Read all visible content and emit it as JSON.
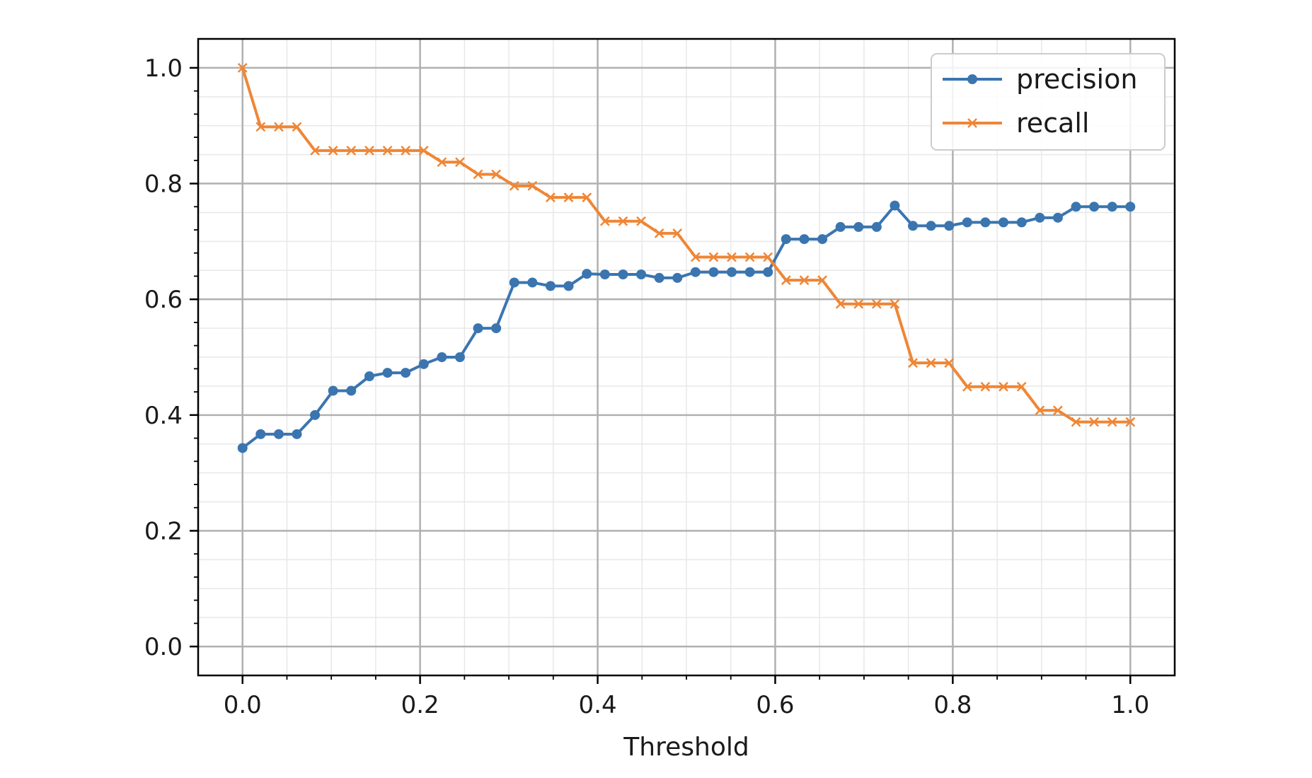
{
  "chart_data": {
    "type": "line",
    "title": "",
    "xlabel": "Threshold",
    "ylabel": "",
    "xlim": [
      -0.05,
      1.05
    ],
    "ylim": [
      -0.05,
      1.05
    ],
    "xticks": [
      0.0,
      0.2,
      0.4,
      0.6,
      0.8,
      1.0
    ],
    "yticks": [
      0.0,
      0.2,
      0.4,
      0.6,
      0.8,
      1.0
    ],
    "xtick_labels": [
      "0.0",
      "0.2",
      "0.4",
      "0.6",
      "0.8",
      "1.0"
    ],
    "ytick_labels": [
      "0.0",
      "0.2",
      "0.4",
      "0.6",
      "0.8",
      "1.0"
    ],
    "grid": {
      "major": true,
      "minor": true
    },
    "legend_position": "top-right",
    "x": [
      0.0,
      0.0204,
      0.0408,
      0.0612,
      0.0816,
      0.102,
      0.1224,
      0.1429,
      0.1633,
      0.1837,
      0.2041,
      0.2245,
      0.2449,
      0.2653,
      0.2857,
      0.3061,
      0.3265,
      0.3469,
      0.3673,
      0.3878,
      0.4082,
      0.4286,
      0.449,
      0.4694,
      0.4898,
      0.5102,
      0.5306,
      0.551,
      0.5714,
      0.5918,
      0.6122,
      0.6327,
      0.6531,
      0.6735,
      0.6939,
      0.7143,
      0.7347,
      0.7551,
      0.7755,
      0.7959,
      0.8163,
      0.8367,
      0.8571,
      0.8776,
      0.898,
      0.9184,
      0.9388,
      0.9592,
      0.9796,
      1.0
    ],
    "series": [
      {
        "name": "precision",
        "color": "#3a75b0",
        "marker": "dot",
        "values": [
          0.343,
          0.367,
          0.367,
          0.367,
          0.4,
          0.442,
          0.442,
          0.467,
          0.473,
          0.473,
          0.488,
          0.5,
          0.5,
          0.55,
          0.55,
          0.629,
          0.629,
          0.623,
          0.623,
          0.644,
          0.643,
          0.643,
          0.643,
          0.637,
          0.637,
          0.647,
          0.647,
          0.647,
          0.647,
          0.647,
          0.704,
          0.704,
          0.704,
          0.725,
          0.725,
          0.725,
          0.762,
          0.727,
          0.727,
          0.727,
          0.733,
          0.733,
          0.733,
          0.733,
          0.741,
          0.741,
          0.76,
          0.76,
          0.76,
          0.76
        ]
      },
      {
        "name": "recall",
        "color": "#ef8636",
        "marker": "x",
        "values": [
          1.0,
          0.898,
          0.898,
          0.898,
          0.857,
          0.857,
          0.857,
          0.857,
          0.857,
          0.857,
          0.857,
          0.837,
          0.837,
          0.816,
          0.816,
          0.796,
          0.796,
          0.776,
          0.776,
          0.776,
          0.735,
          0.735,
          0.735,
          0.714,
          0.714,
          0.673,
          0.673,
          0.673,
          0.673,
          0.673,
          0.633,
          0.633,
          0.633,
          0.592,
          0.592,
          0.592,
          0.592,
          0.49,
          0.49,
          0.49,
          0.449,
          0.449,
          0.449,
          0.449,
          0.408,
          0.408,
          0.388,
          0.388,
          0.388,
          0.388
        ]
      }
    ]
  }
}
